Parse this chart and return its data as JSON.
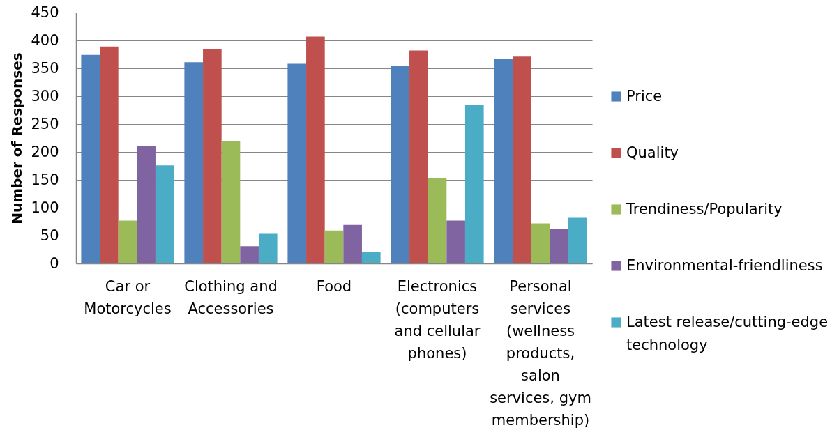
{
  "chart_data": {
    "type": "bar",
    "ylabel": "Number of Responses",
    "categories": [
      "Car or Motorcycles",
      "Clothing and Accessories",
      "Food",
      "Electronics (computers and cellular phones)",
      "Personal services (wellness products, salon services, gym membership)"
    ],
    "series": [
      {
        "name": "Price",
        "color": "#4f81bd",
        "values": [
          374,
          361,
          358,
          355,
          367
        ]
      },
      {
        "name": "Quality",
        "color": "#c0504d",
        "values": [
          389,
          385,
          407,
          382,
          371
        ]
      },
      {
        "name": "Trendiness/Popularity",
        "color": "#9bbb59",
        "values": [
          77,
          220,
          59,
          153,
          72
        ]
      },
      {
        "name": "Environmental-friendliness",
        "color": "#8064a2",
        "values": [
          211,
          31,
          69,
          77,
          62
        ]
      },
      {
        "name": "Latest release/cutting-edge technology",
        "color": "#4bacc6",
        "values": [
          176,
          53,
          20,
          284,
          82
        ]
      }
    ],
    "ylim": [
      0,
      450
    ],
    "yticks": [
      0,
      50,
      100,
      150,
      200,
      250,
      300,
      350,
      400,
      450
    ],
    "grid": "y",
    "legend": "right"
  }
}
